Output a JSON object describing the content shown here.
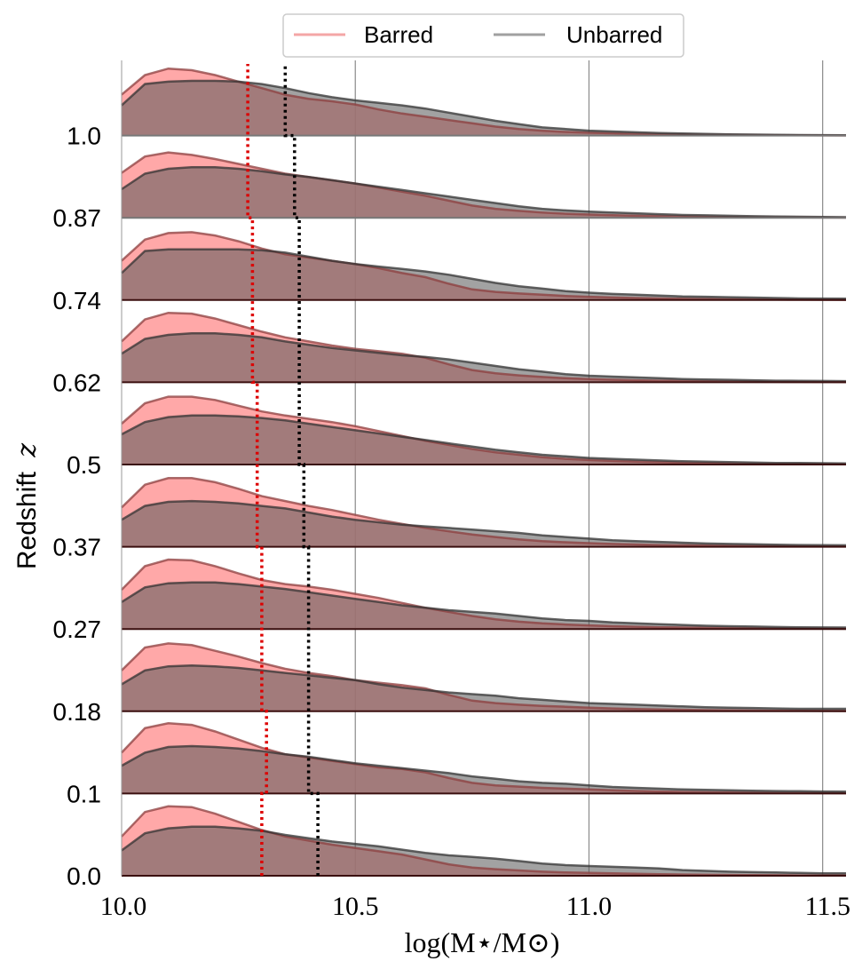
{
  "chart_data": {
    "type": "area",
    "xlabel": "log(M⋆/M⊙)",
    "ylabel": "Redshift",
    "ylabel_var": "z",
    "xlim": [
      10.0,
      11.55
    ],
    "xticks": [
      10.0,
      10.5,
      11.0,
      11.5
    ],
    "xtick_labels": [
      "10.0",
      "10.5",
      "11.0",
      "11.5"
    ],
    "grid_x": true,
    "legend": {
      "placement": "top-center",
      "entries": [
        "Barred",
        "Unbarred"
      ]
    },
    "colors": {
      "barred_fill": "#ff9999",
      "barred_line": "#8c3d3d",
      "unbarred_fill": "#555555",
      "unbarred_line": "#333333",
      "barred_median": "#dd0000",
      "unbarred_median": "#000000",
      "barred_legend": "#f4a6a6",
      "unbarred_legend": "#a0a0a0"
    },
    "redshift_bins": [
      "0.0",
      "0.1",
      "0.18",
      "0.27",
      "0.37",
      "0.5",
      "0.62",
      "0.74",
      "0.87",
      "1.0"
    ],
    "x": [
      10.0,
      10.05,
      10.1,
      10.15,
      10.2,
      10.25,
      10.3,
      10.35,
      10.4,
      10.45,
      10.5,
      10.55,
      10.6,
      10.65,
      10.7,
      10.75,
      10.8,
      10.85,
      10.9,
      10.95,
      11.0,
      11.05,
      11.1,
      11.15,
      11.2,
      11.25,
      11.3,
      11.35,
      11.4,
      11.45,
      11.5,
      11.55
    ],
    "series": [
      {
        "name": "Barred",
        "ridges": [
          {
            "z": "0.0",
            "density": [
              0.48,
              0.78,
              0.85,
              0.84,
              0.76,
              0.66,
              0.56,
              0.48,
              0.43,
              0.38,
              0.34,
              0.3,
              0.26,
              0.2,
              0.14,
              0.1,
              0.08,
              0.065,
              0.05,
              0.04,
              0.035,
              0.03,
              0.025,
              0.02,
              0.015,
              0.012,
              0.01,
              0.008,
              0.006,
              0.004,
              0.003,
              0.002
            ],
            "median": 10.3
          },
          {
            "z": "0.1",
            "density": [
              0.5,
              0.8,
              0.86,
              0.84,
              0.76,
              0.66,
              0.56,
              0.48,
              0.44,
              0.4,
              0.36,
              0.32,
              0.3,
              0.26,
              0.19,
              0.13,
              0.1,
              0.085,
              0.07,
              0.06,
              0.05,
              0.04,
              0.032,
              0.025,
              0.02,
              0.015,
              0.012,
              0.01,
              0.008,
              0.006,
              0.005,
              0.004
            ],
            "median": 10.31
          },
          {
            "z": "0.18",
            "density": [
              0.5,
              0.78,
              0.83,
              0.81,
              0.74,
              0.67,
              0.59,
              0.52,
              0.47,
              0.43,
              0.38,
              0.35,
              0.32,
              0.28,
              0.2,
              0.13,
              0.1,
              0.08,
              0.065,
              0.055,
              0.045,
              0.035,
              0.028,
              0.022,
              0.018,
              0.014,
              0.011,
              0.009,
              0.007,
              0.005,
              0.004,
              0.003
            ],
            "median": 10.3
          },
          {
            "z": "0.27",
            "density": [
              0.48,
              0.77,
              0.85,
              0.84,
              0.77,
              0.68,
              0.6,
              0.55,
              0.52,
              0.48,
              0.43,
              0.38,
              0.32,
              0.26,
              0.21,
              0.16,
              0.12,
              0.09,
              0.07,
              0.055,
              0.045,
              0.035,
              0.028,
              0.022,
              0.018,
              0.014,
              0.011,
              0.009,
              0.007,
              0.005,
              0.004,
              0.003
            ],
            "median": 10.3
          },
          {
            "z": "0.37",
            "density": [
              0.48,
              0.76,
              0.84,
              0.84,
              0.79,
              0.71,
              0.62,
              0.56,
              0.5,
              0.45,
              0.39,
              0.33,
              0.28,
              0.23,
              0.19,
              0.15,
              0.12,
              0.09,
              0.07,
              0.055,
              0.045,
              0.035,
              0.028,
              0.022,
              0.018,
              0.014,
              0.011,
              0.009,
              0.007,
              0.005,
              0.004,
              0.003
            ],
            "median": 10.29
          },
          {
            "z": "0.5",
            "density": [
              0.5,
              0.75,
              0.83,
              0.83,
              0.79,
              0.72,
              0.65,
              0.6,
              0.56,
              0.52,
              0.47,
              0.41,
              0.35,
              0.29,
              0.24,
              0.19,
              0.15,
              0.12,
              0.09,
              0.07,
              0.055,
              0.045,
              0.035,
              0.028,
              0.022,
              0.018,
              0.014,
              0.011,
              0.009,
              0.007,
              0.005,
              0.004
            ],
            "median": 10.29
          },
          {
            "z": "0.62",
            "density": [
              0.5,
              0.77,
              0.85,
              0.84,
              0.78,
              0.7,
              0.62,
              0.55,
              0.5,
              0.45,
              0.41,
              0.38,
              0.35,
              0.3,
              0.22,
              0.15,
              0.11,
              0.085,
              0.065,
              0.05,
              0.04,
              0.032,
              0.025,
              0.02,
              0.015,
              0.012,
              0.009,
              0.007,
              0.005,
              0.004,
              0.003,
              0.002
            ],
            "median": 10.28
          },
          {
            "z": "0.74",
            "density": [
              0.48,
              0.74,
              0.82,
              0.83,
              0.79,
              0.72,
              0.63,
              0.56,
              0.52,
              0.48,
              0.44,
              0.39,
              0.33,
              0.28,
              0.2,
              0.13,
              0.1,
              0.08,
              0.065,
              0.05,
              0.04,
              0.032,
              0.025,
              0.02,
              0.015,
              0.012,
              0.009,
              0.007,
              0.005,
              0.004,
              0.003,
              0.002
            ],
            "median": 10.28
          },
          {
            "z": "0.87",
            "density": [
              0.55,
              0.75,
              0.8,
              0.77,
              0.72,
              0.66,
              0.6,
              0.54,
              0.5,
              0.46,
              0.42,
              0.37,
              0.32,
              0.27,
              0.21,
              0.15,
              0.11,
              0.085,
              0.065,
              0.05,
              0.04,
              0.032,
              0.025,
              0.02,
              0.015,
              0.012,
              0.009,
              0.007,
              0.005,
              0.004,
              0.003,
              0.002
            ],
            "median": 10.27
          },
          {
            "z": "1.0",
            "density": [
              0.5,
              0.74,
              0.82,
              0.8,
              0.74,
              0.66,
              0.58,
              0.5,
              0.45,
              0.42,
              0.38,
              0.32,
              0.27,
              0.23,
              0.19,
              0.15,
              0.11,
              0.08,
              0.06,
              0.045,
              0.035,
              0.028,
              0.022,
              0.017,
              0.013,
              0.01,
              0.008,
              0.006,
              0.004,
              0.003,
              0.002,
              0.001
            ],
            "median": 10.27
          }
        ]
      },
      {
        "name": "Unbarred",
        "ridges": [
          {
            "z": "0.0",
            "density": [
              0.31,
              0.52,
              0.58,
              0.6,
              0.6,
              0.58,
              0.55,
              0.5,
              0.46,
              0.42,
              0.39,
              0.36,
              0.32,
              0.28,
              0.25,
              0.23,
              0.21,
              0.18,
              0.15,
              0.13,
              0.12,
              0.11,
              0.1,
              0.09,
              0.07,
              0.06,
              0.05,
              0.045,
              0.04,
              0.035,
              0.03,
              0.03
            ],
            "median": 10.42
          },
          {
            "z": "0.1",
            "density": [
              0.34,
              0.5,
              0.57,
              0.58,
              0.57,
              0.55,
              0.52,
              0.48,
              0.45,
              0.41,
              0.37,
              0.34,
              0.31,
              0.28,
              0.25,
              0.21,
              0.18,
              0.15,
              0.13,
              0.12,
              0.1,
              0.08,
              0.07,
              0.06,
              0.05,
              0.045,
              0.04,
              0.035,
              0.03,
              0.028,
              0.025,
              0.023
            ],
            "median": 10.4
          },
          {
            "z": "0.18",
            "density": [
              0.33,
              0.5,
              0.55,
              0.56,
              0.55,
              0.53,
              0.5,
              0.47,
              0.44,
              0.41,
              0.38,
              0.33,
              0.29,
              0.26,
              0.23,
              0.21,
              0.19,
              0.16,
              0.14,
              0.12,
              0.1,
              0.09,
              0.08,
              0.07,
              0.06,
              0.05,
              0.045,
              0.04,
              0.035,
              0.03,
              0.03,
              0.03
            ],
            "median": 10.4
          },
          {
            "z": "0.27",
            "density": [
              0.33,
              0.51,
              0.56,
              0.57,
              0.57,
              0.55,
              0.52,
              0.49,
              0.45,
              0.41,
              0.37,
              0.33,
              0.29,
              0.26,
              0.23,
              0.21,
              0.19,
              0.16,
              0.13,
              0.11,
              0.1,
              0.08,
              0.07,
              0.06,
              0.05,
              0.04,
              0.035,
              0.03,
              0.025,
              0.022,
              0.02,
              0.018
            ],
            "median": 10.4
          },
          {
            "z": "0.37",
            "density": [
              0.33,
              0.5,
              0.55,
              0.56,
              0.55,
              0.53,
              0.5,
              0.47,
              0.42,
              0.37,
              0.33,
              0.3,
              0.27,
              0.25,
              0.23,
              0.21,
              0.19,
              0.17,
              0.14,
              0.12,
              0.1,
              0.08,
              0.07,
              0.06,
              0.05,
              0.04,
              0.035,
              0.03,
              0.025,
              0.022,
              0.02,
              0.018
            ],
            "median": 10.39
          },
          {
            "z": "0.5",
            "density": [
              0.37,
              0.52,
              0.58,
              0.6,
              0.6,
              0.59,
              0.57,
              0.54,
              0.5,
              0.46,
              0.42,
              0.38,
              0.34,
              0.3,
              0.26,
              0.22,
              0.18,
              0.15,
              0.12,
              0.1,
              0.08,
              0.07,
              0.06,
              0.05,
              0.04,
              0.035,
              0.03,
              0.025,
              0.02,
              0.018,
              0.016,
              0.014
            ],
            "median": 10.38
          },
          {
            "z": "0.62",
            "density": [
              0.35,
              0.53,
              0.58,
              0.6,
              0.6,
              0.58,
              0.55,
              0.5,
              0.46,
              0.42,
              0.39,
              0.36,
              0.33,
              0.31,
              0.28,
              0.24,
              0.2,
              0.16,
              0.13,
              0.1,
              0.08,
              0.07,
              0.06,
              0.05,
              0.04,
              0.035,
              0.03,
              0.025,
              0.02,
              0.018,
              0.016,
              0.014
            ],
            "median": 10.38
          },
          {
            "z": "0.74",
            "density": [
              0.33,
              0.6,
              0.62,
              0.62,
              0.62,
              0.62,
              0.61,
              0.58,
              0.53,
              0.48,
              0.44,
              0.41,
              0.38,
              0.35,
              0.31,
              0.26,
              0.21,
              0.17,
              0.14,
              0.11,
              0.09,
              0.075,
              0.065,
              0.055,
              0.045,
              0.04,
              0.035,
              0.03,
              0.025,
              0.02,
              0.018,
              0.016
            ],
            "median": 10.38
          },
          {
            "z": "0.87",
            "density": [
              0.35,
              0.54,
              0.6,
              0.62,
              0.62,
              0.6,
              0.57,
              0.53,
              0.5,
              0.46,
              0.42,
              0.38,
              0.34,
              0.3,
              0.26,
              0.22,
              0.18,
              0.14,
              0.11,
              0.09,
              0.075,
              0.065,
              0.055,
              0.045,
              0.035,
              0.03,
              0.025,
              0.02,
              0.016,
              0.013,
              0.01,
              0.008
            ],
            "median": 10.37
          },
          {
            "z": "1.0",
            "density": [
              0.37,
              0.63,
              0.66,
              0.67,
              0.67,
              0.66,
              0.63,
              0.58,
              0.52,
              0.47,
              0.43,
              0.4,
              0.37,
              0.33,
              0.28,
              0.23,
              0.18,
              0.14,
              0.1,
              0.08,
              0.06,
              0.05,
              0.04,
              0.032,
              0.025,
              0.02,
              0.015,
              0.012,
              0.009,
              0.007,
              0.005,
              0.004
            ],
            "median": 10.35
          }
        ]
      }
    ]
  }
}
